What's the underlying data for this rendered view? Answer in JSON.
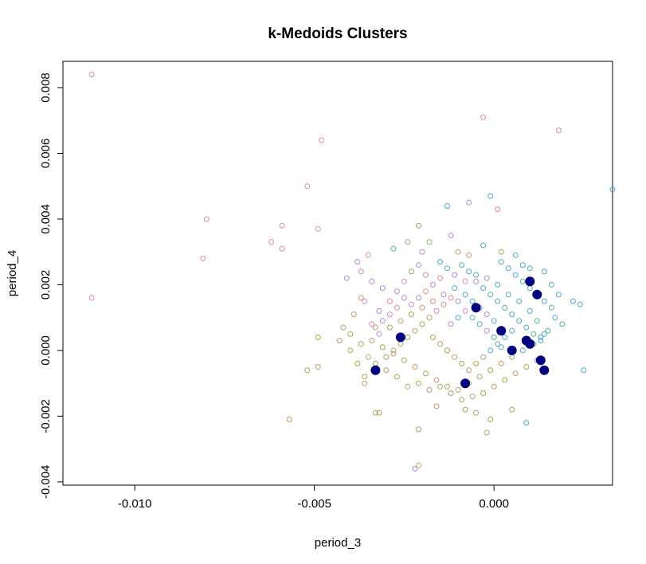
{
  "chart_data": {
    "type": "scatter",
    "title": "k-Medoids Clusters",
    "xlabel": "period_3",
    "ylabel": "period_4",
    "xlim": [
      -0.012,
      0.0033
    ],
    "ylim": [
      -0.0041,
      0.0088
    ],
    "x_ticks": [
      -0.01,
      -0.005,
      0.0
    ],
    "x_tick_labels": [
      "-0.010",
      "-0.005",
      "0.000"
    ],
    "y_ticks": [
      -0.004,
      -0.002,
      0.0,
      0.002,
      0.004,
      0.006,
      0.008
    ],
    "y_tick_labels": [
      "-0.004",
      "-0.002",
      "0.000",
      "0.002",
      "0.004",
      "0.006",
      "0.008"
    ],
    "grid": false,
    "legend": "none",
    "colors": {
      "cluster_palette": [
        "#c09a6e",
        "#a5a84e",
        "#4fb0a8",
        "#52a6cf",
        "#b28ad6",
        "#d98ab6",
        "#e18a7e",
        "#8fae60"
      ],
      "medoid": "#00007f",
      "frame": "#000000"
    },
    "points": [
      [
        -0.0112,
        0.0084,
        5
      ],
      [
        -0.0112,
        0.0016,
        5
      ],
      [
        -0.008,
        0.004,
        5
      ],
      [
        -0.0081,
        0.0028,
        5
      ],
      [
        -0.0062,
        0.0033,
        5
      ],
      [
        -0.0059,
        0.0038,
        5
      ],
      [
        -0.0059,
        0.0031,
        5
      ],
      [
        -0.0052,
        0.005,
        5
      ],
      [
        -0.0049,
        0.0037,
        5
      ],
      [
        -0.0048,
        0.0064,
        5
      ],
      [
        -0.0003,
        0.0071,
        5
      ],
      [
        0.0018,
        0.0067,
        5
      ],
      [
        0.0033,
        0.0049,
        3
      ],
      [
        -0.0001,
        0.0047,
        3
      ],
      [
        0.0001,
        0.0043,
        6
      ],
      [
        -0.0007,
        0.0045,
        4
      ],
      [
        -0.0013,
        0.0044,
        3
      ],
      [
        -0.0057,
        -0.0021,
        0
      ],
      [
        -0.0052,
        -0.0006,
        1
      ],
      [
        -0.0049,
        -0.0005,
        0
      ],
      [
        -0.0049,
        0.0004,
        1
      ],
      [
        -0.0033,
        -0.0019,
        0
      ],
      [
        -0.0032,
        -0.0019,
        1
      ],
      [
        -0.0022,
        -0.0036,
        4
      ],
      [
        -0.0021,
        -0.0035,
        0
      ],
      [
        -0.0021,
        -0.0024,
        1
      ],
      [
        -0.0002,
        -0.0025,
        0
      ],
      [
        -0.0001,
        -0.0021,
        1
      ],
      [
        0.0009,
        -0.0022,
        3
      ],
      [
        0.0025,
        -0.0006,
        3
      ],
      [
        -0.0005,
        -0.0019,
        0
      ],
      [
        0.0005,
        -0.0018,
        1
      ],
      [
        -0.0016,
        -0.0017,
        0
      ],
      [
        -0.0008,
        -0.0018,
        1
      ],
      [
        -0.0036,
        -0.0008,
        1
      ],
      [
        -0.0036,
        -0.001,
        0
      ],
      [
        -0.004,
        0.0,
        1
      ],
      [
        -0.0042,
        0.0007,
        0
      ],
      [
        -0.0037,
        0.0016,
        1
      ],
      [
        -0.0038,
        0.0027,
        4
      ],
      [
        -0.0035,
        0.0029,
        5
      ],
      [
        -0.0031,
        0.0019,
        4
      ],
      [
        -0.0028,
        0.0031,
        2
      ],
      [
        -0.0024,
        0.0033,
        0
      ],
      [
        -0.0021,
        0.0038,
        1
      ],
      [
        -0.0018,
        0.0033,
        7
      ],
      [
        -0.002,
        0.003,
        4
      ],
      [
        -0.0015,
        0.0027,
        3
      ],
      [
        -0.0012,
        0.0035,
        4
      ],
      [
        -0.001,
        0.003,
        0
      ],
      [
        -0.0007,
        0.0029,
        6
      ],
      [
        -0.0003,
        0.0032,
        2
      ],
      [
        0.0002,
        0.003,
        1
      ],
      [
        0.0006,
        0.0029,
        3
      ],
      [
        0.0008,
        0.0026,
        3
      ],
      [
        0.001,
        0.0025,
        2
      ],
      [
        0.0014,
        0.0024,
        3
      ],
      [
        0.0016,
        0.002,
        2
      ],
      [
        0.0018,
        0.0017,
        3
      ],
      [
        0.0022,
        0.0015,
        3
      ],
      [
        0.0024,
        0.0014,
        2
      ],
      [
        0.0017,
        0.001,
        3
      ],
      [
        0.0019,
        0.0008,
        2
      ],
      [
        0.0014,
        0.0005,
        3
      ],
      [
        0.0012,
        0.0009,
        2
      ],
      [
        0.001,
        0.0012,
        3
      ],
      [
        0.0007,
        0.0015,
        2
      ],
      [
        0.0004,
        0.0017,
        3
      ],
      [
        0.0001,
        0.002,
        2
      ],
      [
        -0.0002,
        0.0022,
        4
      ],
      [
        -0.0005,
        0.0023,
        2
      ],
      [
        -0.0008,
        0.0021,
        5
      ],
      [
        -0.0011,
        0.0019,
        3
      ],
      [
        -0.0014,
        0.0017,
        4
      ],
      [
        -0.0017,
        0.0015,
        6
      ],
      [
        -0.002,
        0.0013,
        0
      ],
      [
        -0.0023,
        0.0011,
        1
      ],
      [
        -0.0026,
        0.0009,
        0
      ],
      [
        -0.0029,
        0.0007,
        1
      ],
      [
        -0.0032,
        0.0005,
        4
      ],
      [
        -0.0034,
        0.0003,
        0
      ],
      [
        -0.0031,
        0.0001,
        1
      ],
      [
        -0.0028,
        -0.0001,
        0
      ],
      [
        -0.0025,
        -0.0003,
        1
      ],
      [
        -0.0022,
        -0.0005,
        0
      ],
      [
        -0.0019,
        -0.0007,
        1
      ],
      [
        -0.0016,
        -0.0009,
        0
      ],
      [
        -0.0013,
        -0.0011,
        1
      ],
      [
        -0.001,
        -0.0012,
        0
      ],
      [
        -0.0007,
        -0.001,
        1
      ],
      [
        -0.0004,
        -0.0008,
        0
      ],
      [
        -0.0001,
        -0.0006,
        1
      ],
      [
        0.0002,
        -0.0004,
        0
      ],
      [
        0.0005,
        -0.0002,
        1
      ],
      [
        0.0008,
        0.0,
        3
      ],
      [
        0.0011,
        0.0002,
        2
      ],
      [
        0.0013,
        0.0004,
        3
      ],
      [
        0.0015,
        0.0006,
        2
      ],
      [
        0.0012,
        -0.0003,
        3
      ],
      [
        0.0009,
        -0.0005,
        1
      ],
      [
        0.0006,
        -0.0007,
        0
      ],
      [
        0.0003,
        -0.0009,
        1
      ],
      [
        0.0,
        -0.0011,
        0
      ],
      [
        -0.0003,
        -0.0013,
        1
      ],
      [
        -0.0006,
        -0.0014,
        0
      ],
      [
        -0.0009,
        -0.0015,
        1
      ],
      [
        -0.0012,
        -0.0013,
        0
      ],
      [
        -0.0015,
        -0.0011,
        1
      ],
      [
        -0.0018,
        -0.0012,
        0
      ],
      [
        -0.0021,
        -0.001,
        1
      ],
      [
        -0.0024,
        -0.0011,
        0
      ],
      [
        -0.0027,
        -0.0008,
        1
      ],
      [
        -0.003,
        -0.0006,
        0
      ],
      [
        -0.0033,
        -0.0004,
        1
      ],
      [
        -0.0035,
        -0.0002,
        0
      ],
      [
        -0.0037,
        0.0002,
        1
      ],
      [
        -0.0034,
        0.0008,
        5
      ],
      [
        -0.0032,
        0.0012,
        4
      ],
      [
        -0.0029,
        0.0015,
        6
      ],
      [
        -0.0027,
        0.0018,
        4
      ],
      [
        -0.0025,
        0.0021,
        5
      ],
      [
        -0.0023,
        0.0024,
        7
      ],
      [
        -0.0021,
        0.0026,
        4
      ],
      [
        -0.0019,
        0.0023,
        5
      ],
      [
        -0.0017,
        0.002,
        4
      ],
      [
        -0.0015,
        0.0022,
        6
      ],
      [
        -0.0013,
        0.0025,
        3
      ],
      [
        -0.0011,
        0.0023,
        4
      ],
      [
        -0.0009,
        0.0026,
        2
      ],
      [
        -0.0007,
        0.0024,
        3
      ],
      [
        -0.0005,
        0.0021,
        4
      ],
      [
        -0.0003,
        0.0019,
        3
      ],
      [
        -0.0001,
        0.0017,
        2
      ],
      [
        0.0001,
        0.0015,
        3
      ],
      [
        0.0003,
        0.0013,
        2
      ],
      [
        0.0005,
        0.0011,
        3
      ],
      [
        0.0007,
        0.0009,
        2
      ],
      [
        0.0009,
        0.0007,
        3
      ],
      [
        0.0011,
        0.0005,
        2
      ],
      [
        0.0013,
        0.0003,
        3
      ],
      [
        -0.0014,
        0.0014,
        6
      ],
      [
        -0.0012,
        0.0016,
        6
      ],
      [
        -0.001,
        0.0015,
        4
      ],
      [
        -0.0008,
        0.0017,
        3
      ],
      [
        -0.0006,
        0.0015,
        2
      ],
      [
        -0.0004,
        0.0013,
        3
      ],
      [
        -0.0002,
        0.0011,
        4
      ],
      [
        0.0,
        0.0009,
        3
      ],
      [
        -0.0016,
        0.0012,
        5
      ],
      [
        -0.0018,
        0.001,
        0
      ],
      [
        -0.002,
        0.0008,
        1
      ],
      [
        -0.0022,
        0.0006,
        0
      ],
      [
        -0.0024,
        0.0004,
        7
      ],
      [
        -0.0026,
        0.0002,
        1
      ],
      [
        -0.0028,
        0.0,
        0
      ],
      [
        -0.003,
        -0.0002,
        1
      ],
      [
        -0.0017,
        0.0004,
        1
      ],
      [
        -0.0015,
        0.0002,
        0
      ],
      [
        -0.0013,
        0.0,
        1
      ],
      [
        -0.0011,
        -0.0002,
        0
      ],
      [
        -0.0009,
        -0.0004,
        1
      ],
      [
        -0.0007,
        -0.0006,
        0
      ],
      [
        -0.0005,
        -0.0004,
        1
      ],
      [
        -0.0003,
        -0.0002,
        0
      ],
      [
        -0.0001,
        0.0,
        3
      ],
      [
        0.0001,
        0.0002,
        2
      ],
      [
        0.0003,
        0.0004,
        3
      ],
      [
        0.0005,
        0.0006,
        2
      ],
      [
        -0.0012,
        0.0008,
        4
      ],
      [
        -0.001,
        0.001,
        3
      ],
      [
        -0.0008,
        0.0012,
        5
      ],
      [
        -0.0006,
        0.001,
        3
      ],
      [
        -0.0004,
        0.0008,
        2
      ],
      [
        -0.0002,
        0.0006,
        4
      ],
      [
        0.0,
        0.0004,
        2
      ],
      [
        0.0002,
        0.0001,
        3
      ],
      [
        -0.0019,
        0.0018,
        6
      ],
      [
        -0.0021,
        0.0016,
        4
      ],
      [
        -0.0023,
        0.0014,
        5
      ],
      [
        -0.0025,
        0.0016,
        4
      ],
      [
        -0.0027,
        0.0013,
        6
      ],
      [
        -0.0029,
        0.0011,
        5
      ],
      [
        -0.0031,
        0.0009,
        4
      ],
      [
        -0.0033,
        0.0007,
        0
      ],
      [
        0.0006,
        0.0023,
        3
      ],
      [
        0.0008,
        0.0021,
        2
      ],
      [
        0.001,
        0.0019,
        3
      ],
      [
        0.0012,
        0.0017,
        2
      ],
      [
        0.0014,
        0.0015,
        3
      ],
      [
        0.0016,
        0.0013,
        2
      ],
      [
        0.0004,
        0.0025,
        3
      ],
      [
        0.0002,
        0.0027,
        2
      ],
      [
        -0.004,
        0.0005,
        1
      ],
      [
        -0.0043,
        0.0003,
        0
      ],
      [
        -0.0038,
        -0.0004,
        1
      ],
      [
        -0.0039,
        0.0011,
        0
      ],
      [
        -0.0036,
        0.0015,
        5
      ],
      [
        -0.0041,
        0.0022,
        4
      ],
      [
        -0.0037,
        0.0024,
        5
      ],
      [
        -0.0034,
        0.0021,
        4
      ]
    ],
    "medoids": [
      [
        0.001,
        0.0021
      ],
      [
        0.0012,
        0.0017
      ],
      [
        -0.0005,
        0.0013
      ],
      [
        0.0002,
        0.0006
      ],
      [
        -0.0026,
        0.0004
      ],
      [
        0.0009,
        0.0003
      ],
      [
        0.001,
        0.0002
      ],
      [
        0.0005,
        0.0
      ],
      [
        0.0013,
        -0.0003
      ],
      [
        0.0014,
        -0.0006
      ],
      [
        -0.0033,
        -0.0006
      ],
      [
        -0.0008,
        -0.001
      ]
    ]
  }
}
